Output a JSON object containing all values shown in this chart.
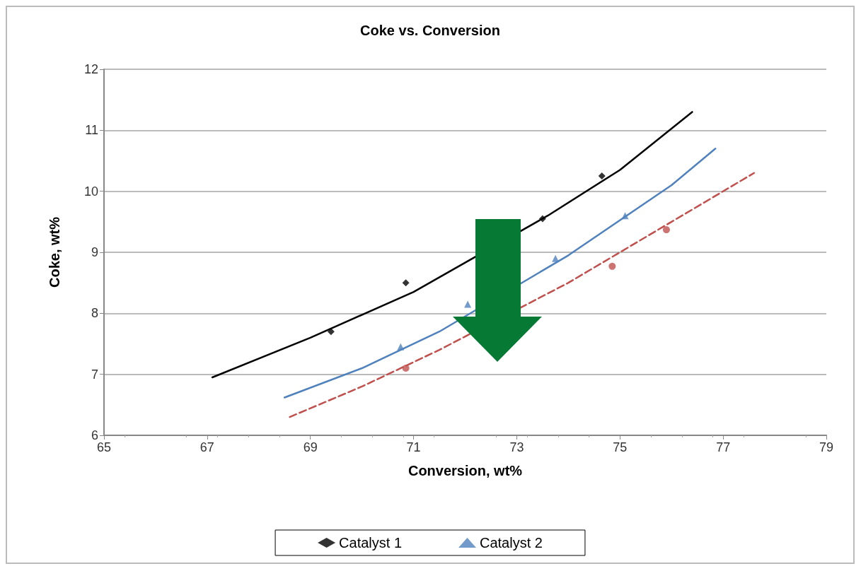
{
  "chart_data": {
    "type": "scatter",
    "title": "Coke vs. Conversion",
    "xlabel": "Conversion, wt%",
    "ylabel": "Coke, wt%",
    "xlim": [
      65,
      79
    ],
    "xticks": [
      65,
      67,
      69,
      71,
      73,
      75,
      77,
      79
    ],
    "ylim": [
      6,
      12
    ],
    "yticks": [
      6,
      7,
      8,
      9,
      10,
      11,
      12
    ],
    "grid": "y",
    "legend": "bottom",
    "series": [
      {
        "name": "Catalyst 1",
        "color": "#000000",
        "marker": "diamond",
        "x": [
          69.4,
          70.85,
          73.5,
          74.65
        ],
        "values": [
          7.7,
          8.5,
          9.55,
          10.25
        ]
      },
      {
        "name": "Catalyst 2",
        "color": "#4f81bd",
        "marker": "triangle",
        "x": [
          70.75,
          72.05,
          73.75,
          75.1
        ],
        "values": [
          7.45,
          8.15,
          8.9,
          9.6
        ]
      },
      {
        "color": "#c0504d",
        "marker": "circle",
        "x": [
          70.85,
          74.85,
          75.9
        ],
        "values": [
          7.1,
          8.77,
          9.37
        ]
      },
      {
        "type": "line",
        "color": "#000000",
        "marker": "none",
        "line_style": "solid",
        "x": [
          67.1,
          69,
          71,
          73.6,
          75,
          76.4
        ],
        "values": [
          6.95,
          7.6,
          8.35,
          9.6,
          10.35,
          11.3
        ]
      },
      {
        "type": "line",
        "color": "#4f81bd",
        "marker": "none",
        "line_style": "solid",
        "x": [
          68.5,
          70,
          71.5,
          74,
          76,
          76.85
        ],
        "values": [
          6.62,
          7.1,
          7.7,
          8.95,
          10.1,
          10.7
        ]
      },
      {
        "type": "line",
        "color": "#c0504d",
        "marker": "none",
        "line_style": "dashed",
        "x": [
          68.6,
          70,
          71.5,
          74,
          76,
          77.6
        ],
        "values": [
          6.3,
          6.8,
          7.4,
          8.5,
          9.5,
          10.3
        ]
      }
    ]
  }
}
